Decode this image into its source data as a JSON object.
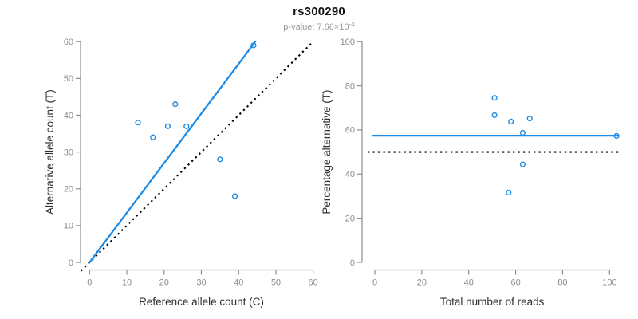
{
  "header": {
    "title": "rs300290",
    "pvalue_label": "p-value: ",
    "pvalue_base": "7.66×10",
    "pvalue_exponent": "-4"
  },
  "colors": {
    "accent_blue": "#1E8CE6",
    "axis_gray": "#8c8c8c",
    "tick_label_gray": "#8c8c8c",
    "axis_title_color": "#2f2f2f",
    "reference_black": "#000000"
  },
  "chart_data": [
    {
      "type": "scatter",
      "name": "allele-counts",
      "title": "",
      "xlabel": "Reference allele count (C)",
      "ylabel": "Alternative allele count (T)",
      "xlim": [
        0,
        60
      ],
      "ylim": [
        0,
        60
      ],
      "xticks": [
        0,
        10,
        20,
        30,
        40,
        50,
        60
      ],
      "yticks": [
        0,
        10,
        20,
        30,
        40,
        50,
        60
      ],
      "grid": false,
      "legend": "none",
      "points": [
        [
          13,
          38
        ],
        [
          17,
          34
        ],
        [
          21,
          37
        ],
        [
          23,
          43
        ],
        [
          26,
          37
        ],
        [
          35,
          28
        ],
        [
          39,
          18
        ],
        [
          44,
          59
        ]
      ],
      "fit_line": {
        "kind": "proportion-through-origin",
        "slope": 1.349,
        "color": "blue",
        "style": "solid"
      },
      "reference_line": {
        "kind": "identity",
        "equation": "y = x",
        "color": "black",
        "style": "dotted"
      }
    },
    {
      "type": "scatter",
      "name": "percentage-alternative",
      "title": "",
      "xlabel": "Total number of reads",
      "ylabel": "Percentage alternative (T)",
      "xlim": [
        0,
        103
      ],
      "ylim": [
        0,
        100
      ],
      "xticks": [
        0,
        20,
        40,
        60,
        80,
        100
      ],
      "yticks": [
        0,
        20,
        40,
        60,
        80,
        100
      ],
      "grid": false,
      "legend": "none",
      "points": [
        [
          51,
          74.5
        ],
        [
          51,
          66.7
        ],
        [
          58,
          63.8
        ],
        [
          66,
          65.2
        ],
        [
          63,
          58.7
        ],
        [
          63,
          44.4
        ],
        [
          57,
          31.6
        ],
        [
          103,
          57.3
        ]
      ],
      "fit_line": {
        "kind": "horizontal",
        "value": 57.4,
        "color": "blue",
        "style": "solid"
      },
      "reference_line": {
        "kind": "horizontal",
        "value": 50,
        "color": "black",
        "style": "dotted"
      }
    }
  ]
}
